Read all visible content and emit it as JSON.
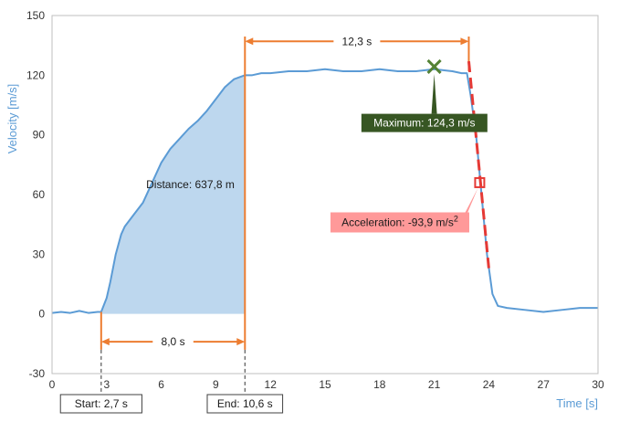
{
  "chart_data": {
    "type": "area",
    "xlabel": "Time [s]",
    "ylabel": "Velocity [m/s]",
    "xlim": [
      0,
      30
    ],
    "ylim": [
      -30,
      150
    ],
    "xticks": [
      0,
      3,
      6,
      9,
      12,
      15,
      18,
      21,
      24,
      27,
      30
    ],
    "yticks": [
      -30,
      0,
      30,
      60,
      90,
      120,
      150
    ],
    "grid": false,
    "series": [
      {
        "color": "#5b9bd5",
        "x": [
          0,
          0.5,
          1,
          1.5,
          2,
          2.5,
          2.7,
          3.0,
          3.2,
          3.5,
          3.8,
          4.0,
          4.5,
          5.0,
          5.5,
          6.0,
          6.5,
          7.0,
          7.5,
          8.0,
          8.5,
          9.0,
          9.5,
          10.0,
          10.6,
          11.0,
          11.5,
          12,
          13,
          14,
          15,
          16,
          17,
          18,
          19,
          20,
          21,
          22,
          22.5,
          22.8,
          23.0,
          23.3,
          23.6,
          23.9,
          24.2,
          24.5,
          25,
          26,
          27,
          28,
          29,
          30
        ],
        "y": [
          0.5,
          1,
          0.5,
          1.5,
          0.5,
          1,
          1,
          8,
          16,
          30,
          40,
          44,
          50,
          56,
          66,
          76,
          83,
          88,
          93,
          97,
          102,
          108,
          114,
          118,
          120,
          120,
          121,
          121,
          122,
          122,
          123,
          122,
          122,
          123,
          122,
          122,
          123,
          122,
          121,
          121,
          110,
          90,
          60,
          30,
          10,
          4,
          3,
          2,
          1,
          2,
          3,
          3
        ]
      }
    ],
    "shaded_region": {
      "x_start": 2.7,
      "x_end": 10.6,
      "color": "#bdd7ee"
    },
    "tangent_line": {
      "x": [
        22.9,
        24.0
      ],
      "y": [
        127,
        23
      ],
      "color": "#e53935"
    },
    "annotations": {
      "distance": {
        "text": "Distance: 637,8 m",
        "x": 7.6,
        "y": 65
      },
      "maximum": {
        "text": "Maximum: 124,3 m/s",
        "marker_x": 21,
        "marker_y": 124.3,
        "box_x": 17.3,
        "box_y": 96
      },
      "acceleration": {
        "text": "Acceleration: -93,9 m/s",
        "sup": "2",
        "marker_x": 23.5,
        "marker_y": 66,
        "box_x": 15.3,
        "box_y": 46
      },
      "duration_top": {
        "text": "12,3 s",
        "x1": 10.6,
        "x2": 22.9,
        "y": 137
      },
      "duration_bottom": {
        "text": "8,0 s",
        "x1": 2.7,
        "x2": 10.6,
        "y": -14
      },
      "start_label": {
        "text": "Start: 2,7 s",
        "x": 2.7
      },
      "end_label": {
        "text": "End: 10,6 s",
        "x": 10.6
      }
    },
    "colors": {
      "line": "#5b9bd5",
      "fill": "#bdd7ee",
      "orange": "#ed7d31",
      "max_box": "#375623",
      "max_marker": "#548235",
      "accel_box": "#ff9999",
      "accel_marker": "#e53935"
    }
  }
}
